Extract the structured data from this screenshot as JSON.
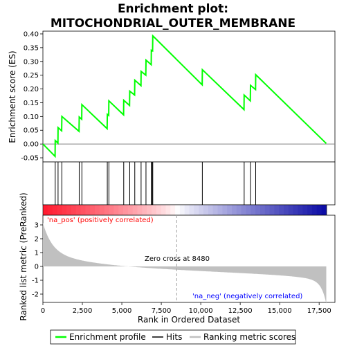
{
  "chart_data": {
    "type": "line",
    "title_line1": "Enrichment plot:",
    "title_line2": "MITOCHONDRIAL_OUTER_MEMBRANE",
    "top_ylabel": "Enrichment score (ES)",
    "bottom_ylabel": "Ranked list metric (PreRanked)",
    "xlabel": "Rank in Ordered Dataset",
    "xlim": [
      0,
      18500
    ],
    "es_ylim": [
      -0.065,
      0.41
    ],
    "es_yticks": [
      "-0.05",
      "0.00",
      "0.05",
      "0.10",
      "0.15",
      "0.20",
      "0.25",
      "0.30",
      "0.35",
      "0.40"
    ],
    "metric_ylim": [
      -2.6,
      3.7
    ],
    "metric_yticks": [
      "-2",
      "-1",
      "0",
      "1",
      "2",
      "3"
    ],
    "xticks": [
      "0",
      "2,500",
      "5,000",
      "7,500",
      "10,000",
      "12,500",
      "15,000",
      "17,500"
    ],
    "total_genes": 17950,
    "zero_cross": 8480,
    "zero_cross_label": "Zero cross at 8480",
    "pos_label": "'na_pos' (positively correlated)",
    "neg_label": "'na_neg' (negatively correlated)",
    "hits": [
      780,
      960,
      1200,
      2300,
      2470,
      4080,
      4180,
      5120,
      5500,
      5820,
      6220,
      6530,
      6870,
      6920,
      6960,
      10100,
      12750,
      13150,
      13480
    ],
    "es_points": [
      [
        0,
        0.0
      ],
      [
        770,
        -0.045
      ],
      [
        780,
        0.013
      ],
      [
        950,
        0.003
      ],
      [
        960,
        0.06
      ],
      [
        1190,
        0.048
      ],
      [
        1200,
        0.1
      ],
      [
        2290,
        0.046
      ],
      [
        2300,
        0.098
      ],
      [
        2460,
        0.09
      ],
      [
        2470,
        0.143
      ],
      [
        4070,
        0.056
      ],
      [
        4080,
        0.108
      ],
      [
        4170,
        0.104
      ],
      [
        4180,
        0.157
      ],
      [
        5110,
        0.106
      ],
      [
        5120,
        0.159
      ],
      [
        5490,
        0.14
      ],
      [
        5500,
        0.192
      ],
      [
        5810,
        0.178
      ],
      [
        5820,
        0.232
      ],
      [
        6210,
        0.212
      ],
      [
        6220,
        0.264
      ],
      [
        6520,
        0.25
      ],
      [
        6530,
        0.305
      ],
      [
        6860,
        0.288
      ],
      [
        6870,
        0.34
      ],
      [
        6910,
        0.338
      ],
      [
        6920,
        0.34
      ],
      [
        6950,
        0.339
      ],
      [
        6960,
        0.393
      ],
      [
        10090,
        0.215
      ],
      [
        10100,
        0.27
      ],
      [
        12740,
        0.125
      ],
      [
        12750,
        0.178
      ],
      [
        13140,
        0.157
      ],
      [
        13150,
        0.213
      ],
      [
        13470,
        0.198
      ],
      [
        13480,
        0.252
      ],
      [
        17950,
        0.002
      ]
    ],
    "legend": [
      {
        "name": "Enrichment profile",
        "color": "#00ff00"
      },
      {
        "name": "Hits",
        "color": "#000000"
      },
      {
        "name": "Ranking metric scores",
        "color": "#c0c0c0"
      }
    ]
  }
}
